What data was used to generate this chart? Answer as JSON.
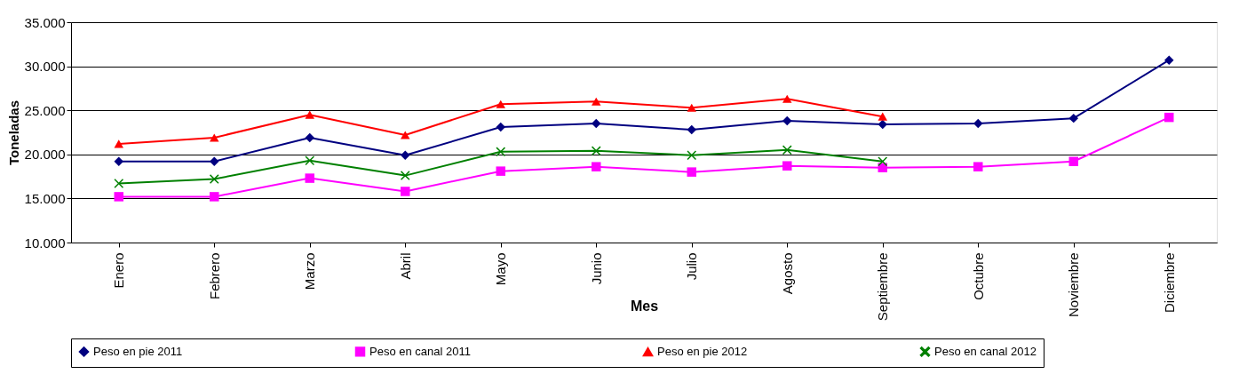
{
  "chart_data": {
    "type": "line",
    "xlabel": "Mes",
    "ylabel": "Toneladas",
    "categories": [
      "Enero",
      "Febrero",
      "Marzo",
      "Abril",
      "Mayo",
      "Junio",
      "Julio",
      "Agosto",
      "Septiembre",
      "Octubre",
      "Noviembre",
      "Diciembre"
    ],
    "series": [
      {
        "name": "Peso en pie 2011",
        "color": "#000080",
        "marker": "diamond",
        "values": [
          19200,
          19200,
          21900,
          19900,
          23100,
          23500,
          22800,
          23800,
          23400,
          23500,
          24100,
          30700
        ]
      },
      {
        "name": "Peso en canal 2011",
        "color": "#ff00ff",
        "marker": "square",
        "values": [
          15200,
          15200,
          17300,
          15800,
          18100,
          18600,
          18000,
          18700,
          18500,
          18600,
          19200,
          24200
        ]
      },
      {
        "name": "Peso en pie 2012",
        "color": "#ff0000",
        "marker": "triangle",
        "values": [
          21200,
          21900,
          24500,
          22200,
          25700,
          26000,
          25300,
          26300,
          24300,
          null,
          null,
          null
        ]
      },
      {
        "name": "Peso en canal 2012",
        "color": "#008000",
        "marker": "cross",
        "values": [
          16700,
          17200,
          19300,
          17600,
          20300,
          20400,
          19900,
          20500,
          19200,
          null,
          null,
          null
        ]
      }
    ],
    "ylim": [
      10000,
      35000
    ],
    "yticks": [
      {
        "value": 10000,
        "label": "10.000"
      },
      {
        "value": 15000,
        "label": "15.000"
      },
      {
        "value": 20000,
        "label": "20.000"
      },
      {
        "value": 25000,
        "label": "25.000"
      },
      {
        "value": 30000,
        "label": "30.000"
      },
      {
        "value": 35000,
        "label": "35.000"
      }
    ],
    "grid": "y",
    "legend": "bottom",
    "line_style": "solid"
  }
}
